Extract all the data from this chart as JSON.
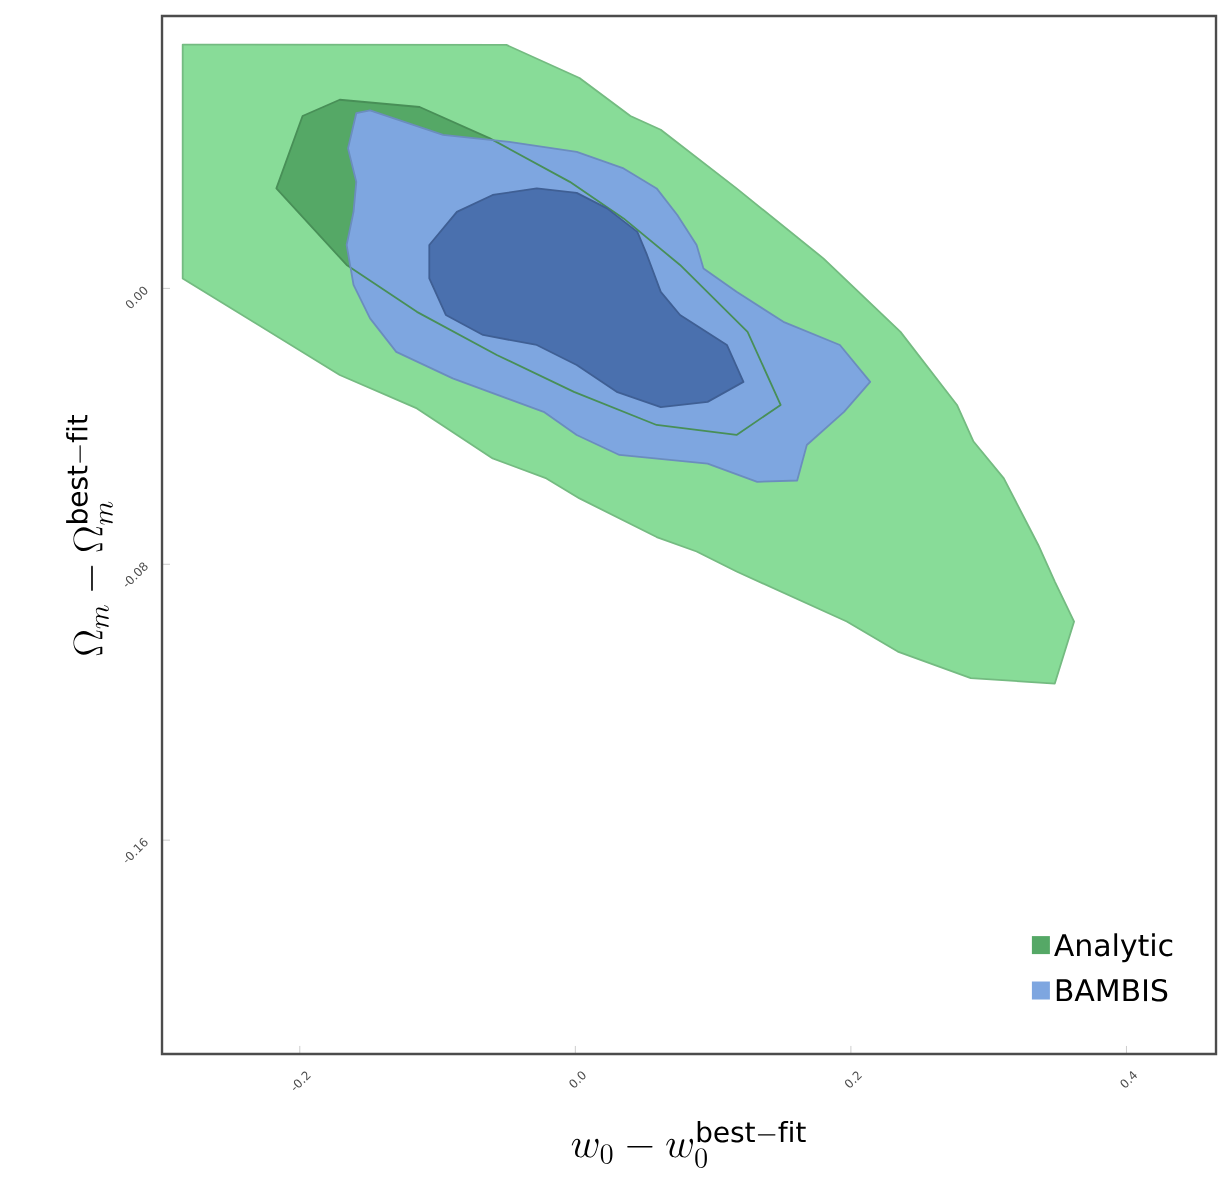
{
  "chart_data": {
    "type": "area",
    "xlabel": "w_0 - w_0^{\\rm best-fit}",
    "ylabel": "\\Omega_m - \\Omega_m^{\\rm best-fit}",
    "xlim": [
      -0.3,
      0.465
    ],
    "ylim": [
      -0.222,
      0.079
    ],
    "xticks": [
      -0.2,
      {
        "value": 0,
        "label": "0.0"
      },
      0.2,
      0.4
    ],
    "yticks": [
      {
        "value": 0,
        "label": "0.00"
      },
      -0.08,
      -0.16
    ],
    "legend": "bottom right",
    "series": [
      {
        "color": "#88dc98",
        "x": [
          -0.285,
          -0.05,
          0.003,
          0.04,
          0.062,
          0.117,
          0.18,
          0.236,
          0.277,
          0.289,
          0.311,
          0.336,
          0.348,
          0.362,
          0.348,
          0.287,
          0.234,
          0.197,
          0.117,
          0.088,
          0.059,
          0.003,
          -0.021,
          -0.06,
          -0.115,
          -0.171,
          -0.285
        ],
        "values": [
          0.0707,
          0.0706,
          0.061,
          0.05,
          0.046,
          0.029,
          0.0087,
          -0.0126,
          -0.0338,
          -0.0444,
          -0.0551,
          -0.0744,
          -0.085,
          -0.0966,
          -0.1146,
          -0.113,
          -0.1053,
          -0.0966,
          -0.0821,
          -0.0763,
          -0.0721,
          -0.0609,
          -0.0551,
          -0.0493,
          -0.0348,
          -0.0251,
          0.0029
        ]
      },
      {
        "name": "Analytic",
        "color": "#55a866",
        "x": [
          -0.198,
          -0.171,
          -0.113,
          -0.062,
          -0.004,
          0.035,
          0.076,
          0.125,
          0.149,
          0.117,
          0.059,
          -0.001,
          -0.057,
          -0.115,
          -0.166,
          -0.217
        ],
        "values": [
          0.05,
          0.0547,
          0.0526,
          0.0435,
          0.0309,
          0.0203,
          0.0068,
          -0.0126,
          -0.0338,
          -0.0425,
          -0.0396,
          -0.03,
          -0.0193,
          -0.0068,
          0.0068,
          0.029
        ]
      },
      {
        "name": "BAMBIS",
        "color": "#7ea6e0",
        "x": [
          -0.159,
          -0.149,
          -0.096,
          -0.048,
          0.001,
          0.035,
          0.059,
          0.074,
          0.088,
          0.093,
          0.117,
          0.151,
          0.192,
          0.214,
          0.195,
          0.168,
          0.161,
          0.132,
          0.096,
          0.032,
          0.001,
          -0.023,
          -0.089,
          -0.13,
          -0.149,
          -0.161,
          -0.166,
          -0.161,
          -0.159,
          -0.165
        ],
        "values": [
          0.0508,
          0.0516,
          0.0445,
          0.0425,
          0.0396,
          0.0348,
          0.029,
          0.0213,
          0.0126,
          0.0058,
          -0.001,
          -0.0097,
          -0.0164,
          -0.0271,
          -0.0358,
          -0.0454,
          -0.0557,
          -0.0561,
          -0.0508,
          -0.0483,
          -0.0425,
          -0.0358,
          -0.0261,
          -0.0184,
          -0.0087,
          0.001,
          0.0126,
          0.0222,
          0.0309,
          0.0406
        ]
      },
      {
        "color": "#4a70ae",
        "x": [
          -0.106,
          -0.086,
          -0.06,
          -0.028,
          0.001,
          0.023,
          0.045,
          0.052,
          0.062,
          0.076,
          0.11,
          0.122,
          0.096,
          0.062,
          0.03,
          0.001,
          -0.028,
          -0.067,
          -0.094,
          -0.106
        ],
        "values": [
          0.0126,
          0.0222,
          0.0271,
          0.029,
          0.0277,
          0.0232,
          0.0164,
          0.0097,
          -0.001,
          -0.0077,
          -0.0164,
          -0.0271,
          -0.0329,
          -0.0344,
          -0.03,
          -0.0222,
          -0.0164,
          -0.0135,
          -0.0077,
          0.0029
        ]
      }
    ]
  }
}
